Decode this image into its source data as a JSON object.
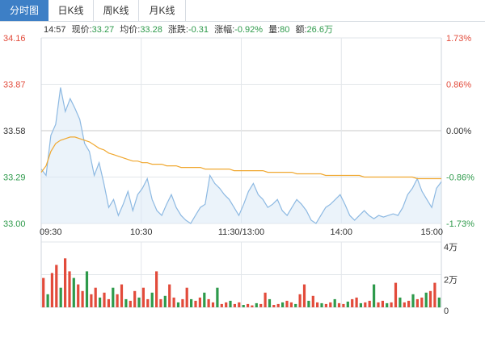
{
  "tabs": [
    "分时图",
    "日K线",
    "周K线",
    "月K线"
  ],
  "active_tab": 0,
  "info": {
    "time": "14:57",
    "price_label": "现价:",
    "price": "33.27",
    "avg_label": "均价:",
    "avg": "33.28",
    "change_label": "涨跌:",
    "change": "-0.31",
    "pct_label": "涨幅:",
    "pct": "-0.92%",
    "vol_label": "量:",
    "vol": "80",
    "amount_label": "额:",
    "amount": "26.6万"
  },
  "colors": {
    "price_line": "#8db9e2",
    "price_fill": "#dbe9f6",
    "avg_line": "#f0a830",
    "up": "#e24b3b",
    "down": "#2e9a4b",
    "grid": "#e2e6ea",
    "ref": "#c8c8c8",
    "tab_active": "#3d7fc6"
  },
  "chart_data": [
    {
      "type": "line",
      "title": "",
      "prev_close": 33.58,
      "ylim": [
        33.0,
        34.16
      ],
      "y_ticks_left": [
        "34.16",
        "33.87",
        "33.58",
        "33.29",
        "33.00"
      ],
      "y_ticks_right": [
        "1.73%",
        "0.86%",
        "0.00%",
        "-0.86%",
        "-1.73%"
      ],
      "x_ticks": [
        "09:30",
        "10:30",
        "11:30/13:00",
        "14:00",
        "15:00"
      ],
      "grid": true,
      "series": [
        {
          "values": [
            33.34,
            33.3,
            33.55,
            33.62,
            33.85,
            33.7,
            33.78,
            33.72,
            33.65,
            33.5,
            33.45,
            33.3,
            33.38,
            33.25,
            33.1,
            33.15,
            33.05,
            33.12,
            33.2,
            33.08,
            33.18,
            33.22,
            33.28,
            33.15,
            33.08,
            33.05,
            33.12,
            33.18,
            33.1,
            33.05,
            33.02,
            33.0,
            33.05,
            33.1,
            33.12,
            33.3,
            33.25,
            33.22,
            33.18,
            33.15,
            33.1,
            33.05,
            33.12,
            33.2,
            33.25,
            33.18,
            33.15,
            33.1,
            33.12,
            33.15,
            33.08,
            33.05,
            33.1,
            33.15,
            33.12,
            33.08,
            33.02,
            33.0,
            33.05,
            33.1,
            33.12,
            33.15,
            33.18,
            33.12,
            33.05,
            33.02,
            33.05,
            33.08,
            33.05,
            33.03,
            33.05,
            33.04,
            33.05,
            33.06,
            33.05,
            33.1,
            33.18,
            33.22,
            33.28,
            33.2,
            33.15,
            33.1,
            33.22,
            33.26
          ]
        },
        {
          "values": [
            33.32,
            33.36,
            33.45,
            33.5,
            33.52,
            33.53,
            33.54,
            33.54,
            33.53,
            33.52,
            33.51,
            33.49,
            33.47,
            33.46,
            33.44,
            33.43,
            33.42,
            33.41,
            33.4,
            33.39,
            33.39,
            33.38,
            33.38,
            33.37,
            33.37,
            33.37,
            33.36,
            33.36,
            33.36,
            33.35,
            33.35,
            33.35,
            33.35,
            33.35,
            33.34,
            33.34,
            33.34,
            33.34,
            33.34,
            33.34,
            33.33,
            33.33,
            33.33,
            33.33,
            33.33,
            33.33,
            33.33,
            33.32,
            33.32,
            33.32,
            33.32,
            33.32,
            33.32,
            33.31,
            33.31,
            33.31,
            33.31,
            33.31,
            33.31,
            33.3,
            33.3,
            33.3,
            33.3,
            33.3,
            33.3,
            33.3,
            33.3,
            33.29,
            33.29,
            33.29,
            33.29,
            33.29,
            33.29,
            33.29,
            33.29,
            33.29,
            33.29,
            33.29,
            33.28,
            33.28,
            33.28,
            33.28,
            33.28,
            33.28
          ]
        }
      ]
    },
    {
      "type": "bar",
      "title": "",
      "ylim": [
        0,
        40000
      ],
      "y_ticks": [
        "4万",
        "2万",
        "0"
      ],
      "series": [
        {
          "values": [
            18000,
            8000,
            21000,
            26000,
            12000,
            30000,
            22000,
            18000,
            14000,
            10000,
            22000,
            8000,
            12000,
            6000,
            9000,
            5000,
            12000,
            8000,
            14000,
            5000,
            4000,
            10000,
            6000,
            12000,
            5000,
            9000,
            22000,
            5000,
            7000,
            14000,
            6000,
            3000,
            5000,
            12000,
            5000,
            4000,
            6000,
            9000,
            5000,
            3000,
            12000,
            2000,
            3000,
            4000,
            2000,
            3000,
            1500,
            2000,
            1200,
            2500,
            2000,
            9000,
            5000,
            1500,
            2000,
            3000,
            4000,
            3000,
            2000,
            8000,
            14000,
            4000,
            7000,
            3000,
            2500,
            2000,
            3000,
            5000,
            2500,
            2000,
            3500,
            5000,
            6000,
            2500,
            3000,
            4000,
            14000,
            3000,
            4000,
            2500,
            3000,
            15000,
            6000,
            3000,
            4000,
            8000,
            5000,
            6000,
            9000,
            10000,
            15000,
            6000
          ]
        }
      ]
    }
  ]
}
